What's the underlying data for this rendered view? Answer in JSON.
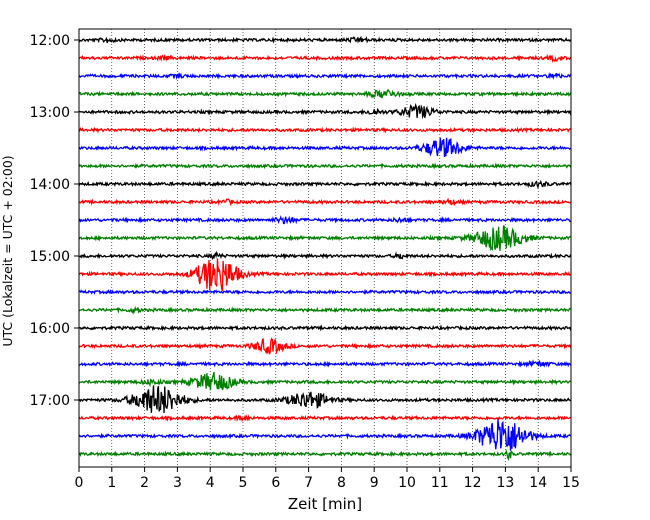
{
  "chart_data": {
    "type": "line",
    "title": "",
    "xlabel": "Zeit  [min]",
    "ylabel": "UTC (Lokalzeit = UTC + 02:00)",
    "xlim": [
      0,
      15
    ],
    "x_ticks": [
      "0",
      "1",
      "2",
      "3",
      "4",
      "5",
      "6",
      "7",
      "8",
      "9",
      "10",
      "11",
      "12",
      "13",
      "14",
      "15"
    ],
    "y_ticks": [
      "12:00",
      "13:00",
      "14:00",
      "15:00",
      "16:00",
      "17:00"
    ],
    "grid": "vertical dotted lines at each minute",
    "colors": [
      "#000000",
      "#ff0000",
      "#0000ff",
      "#008000"
    ],
    "traces": [
      {
        "time": "12:00",
        "color": "#000000",
        "events": [
          {
            "t": 0.9,
            "amp": 0.5,
            "w": 0.2
          },
          {
            "t": 8.5,
            "amp": 0.4,
            "w": 0.3
          }
        ]
      },
      {
        "time": "12:15",
        "color": "#ff0000",
        "events": [
          {
            "t": 14.5,
            "amp": 0.5,
            "w": 0.2
          },
          {
            "t": 2.6,
            "amp": 0.3,
            "w": 0.2
          }
        ]
      },
      {
        "time": "12:30",
        "color": "#0000ff",
        "events": [
          {
            "t": 14.5,
            "amp": 0.7,
            "w": 0.15
          },
          {
            "t": 3.0,
            "amp": 0.3,
            "w": 0.2
          }
        ]
      },
      {
        "time": "12:45",
        "color": "#008000",
        "events": [
          {
            "t": 9.3,
            "amp": 0.9,
            "w": 0.4
          }
        ]
      },
      {
        "time": "13:00",
        "color": "#000000",
        "events": [
          {
            "t": 10.3,
            "amp": 1.5,
            "w": 0.5
          },
          {
            "t": 9.0,
            "amp": 0.7,
            "w": 0.2
          }
        ]
      },
      {
        "time": "13:15",
        "color": "#ff0000",
        "events": []
      },
      {
        "time": "13:30",
        "color": "#0000ff",
        "events": [
          {
            "t": 11.1,
            "amp": 2.4,
            "w": 0.55
          }
        ]
      },
      {
        "time": "13:45",
        "color": "#008000",
        "events": []
      },
      {
        "time": "14:00",
        "color": "#000000",
        "events": [
          {
            "t": 14.0,
            "amp": 0.5,
            "w": 0.3
          }
        ]
      },
      {
        "time": "14:15",
        "color": "#ff0000",
        "events": [
          {
            "t": 4.5,
            "amp": 0.4,
            "w": 0.2
          },
          {
            "t": 11.3,
            "amp": 0.5,
            "w": 0.2
          }
        ]
      },
      {
        "time": "14:30",
        "color": "#0000ff",
        "events": [
          {
            "t": 6.3,
            "amp": 0.7,
            "w": 0.3
          },
          {
            "t": 9.8,
            "amp": 0.4,
            "w": 0.2
          }
        ]
      },
      {
        "time": "14:45",
        "color": "#008000",
        "events": [
          {
            "t": 12.8,
            "amp": 2.9,
            "w": 0.7
          }
        ]
      },
      {
        "time": "15:00",
        "color": "#000000",
        "events": [
          {
            "t": 4.2,
            "amp": 0.6,
            "w": 0.15
          },
          {
            "t": 9.8,
            "amp": 0.6,
            "w": 0.15
          }
        ]
      },
      {
        "time": "15:15",
        "color": "#ff0000",
        "events": [
          {
            "t": 4.2,
            "amp": 4.5,
            "w": 0.6
          }
        ]
      },
      {
        "time": "15:30",
        "color": "#0000ff",
        "events": []
      },
      {
        "time": "15:45",
        "color": "#008000",
        "events": [
          {
            "t": 1.7,
            "amp": 0.4,
            "w": 0.2
          }
        ]
      },
      {
        "time": "16:00",
        "color": "#000000",
        "events": []
      },
      {
        "time": "16:15",
        "color": "#ff0000",
        "events": [
          {
            "t": 5.8,
            "amp": 1.7,
            "w": 0.45
          }
        ]
      },
      {
        "time": "16:30",
        "color": "#0000ff",
        "events": [
          {
            "t": 14.0,
            "amp": 0.5,
            "w": 0.3
          }
        ]
      },
      {
        "time": "16:45",
        "color": "#008000",
        "events": [
          {
            "t": 4.1,
            "amp": 2.2,
            "w": 0.6
          },
          {
            "t": 2.2,
            "amp": 0.5,
            "w": 0.3
          }
        ]
      },
      {
        "time": "17:00",
        "color": "#000000",
        "events": [
          {
            "t": 2.4,
            "amp": 3.6,
            "w": 0.7
          },
          {
            "t": 7.0,
            "amp": 2.0,
            "w": 0.6
          }
        ]
      },
      {
        "time": "17:15",
        "color": "#ff0000",
        "events": [
          {
            "t": 5.0,
            "amp": 0.4,
            "w": 0.2
          }
        ]
      },
      {
        "time": "17:30",
        "color": "#0000ff",
        "events": [
          {
            "t": 12.9,
            "amp": 4.5,
            "w": 0.7
          }
        ]
      },
      {
        "time": "17:45",
        "color": "#008000",
        "events": [
          {
            "t": 13.1,
            "amp": 1.2,
            "w": 0.08
          }
        ]
      }
    ]
  }
}
